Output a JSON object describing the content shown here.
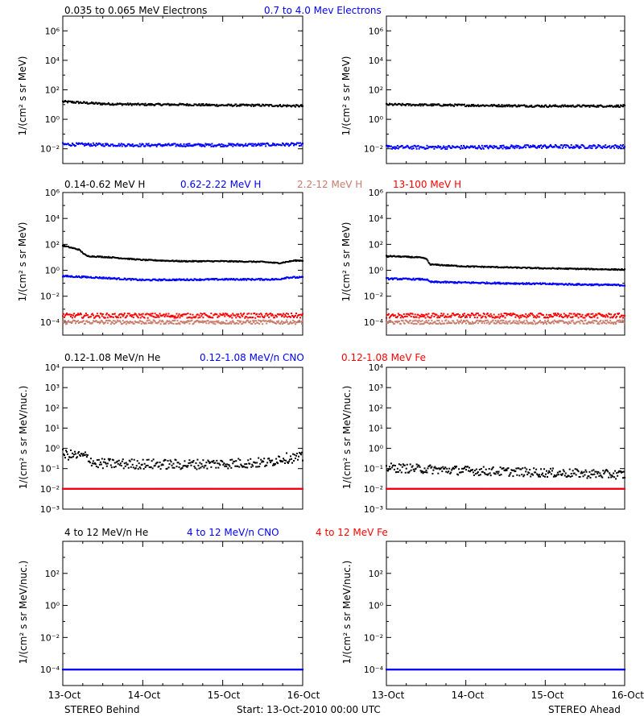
{
  "legends": {
    "electrons": [
      {
        "label": "0.035 to 0.065 MeV Electrons",
        "color": "#000000"
      },
      {
        "label": "0.7 to 4.0 Mev Electrons",
        "color": "#0000ff"
      }
    ],
    "protons": [
      {
        "label": "0.14-0.62 MeV H",
        "color": "#000000"
      },
      {
        "label": "0.62-2.22 MeV H",
        "color": "#0000ff"
      },
      {
        "label": "2.2-12 MeV H",
        "color": "#c87c6c"
      },
      {
        "label": "13-100 MeV H",
        "color": "#ff0000"
      }
    ],
    "heavy_low": [
      {
        "label": "0.12-1.08 MeV/n He",
        "color": "#000000"
      },
      {
        "label": "0.12-1.08 MeV/n CNO",
        "color": "#0000ff"
      },
      {
        "label": "0.12-1.08 MeV Fe",
        "color": "#ff0000"
      }
    ],
    "heavy_high": [
      {
        "label": "4 to 12 MeV/n He",
        "color": "#000000"
      },
      {
        "label": "4 to 12 MeV/n CNO",
        "color": "#0000ff"
      },
      {
        "label": "4 to 12 MeV Fe",
        "color": "#ff0000"
      }
    ]
  },
  "ylabels": {
    "per_mev": "1/(cm² s sr MeV)",
    "per_nuc": "1/(cm² s sr MeV/nuc.)"
  },
  "xticks": [
    "13-Oct",
    "14-Oct",
    "15-Oct",
    "16-Oct"
  ],
  "footer": {
    "left": "STEREO Behind",
    "center": "Start: 13-Oct-2010 00:00 UTC",
    "right": "STEREO Ahead"
  },
  "chart_data": [
    {
      "type": "scatter",
      "panel": "electrons-behind",
      "x": "days since start",
      "xlim": [
        0,
        3
      ],
      "log_y": true,
      "ylim_exp": [
        -3,
        7
      ],
      "yticks_exp": [
        -2,
        0,
        2,
        4,
        6
      ],
      "series": [
        {
          "name": "0.035 to 0.065 MeV Electrons",
          "color": "#000000",
          "x": [
            0,
            0.5,
            1,
            1.5,
            2,
            2.5,
            3
          ],
          "y_exp": [
            1.2,
            1.05,
            1.0,
            1.0,
            0.95,
            0.95,
            0.9
          ],
          "noise": 0.07
        },
        {
          "name": "0.7 to 4.0 Mev Electrons",
          "color": "#0000ff",
          "x": [
            0,
            1,
            2,
            3
          ],
          "y_exp": [
            -1.7,
            -1.75,
            -1.75,
            -1.7
          ],
          "noise": 0.1
        }
      ]
    },
    {
      "type": "scatter",
      "panel": "electrons-ahead",
      "x": "days since start",
      "xlim": [
        0,
        3
      ],
      "log_y": true,
      "ylim_exp": [
        -3,
        7
      ],
      "yticks_exp": [
        -2,
        0,
        2,
        4,
        6
      ],
      "series": [
        {
          "name": "0.035 to 0.065 MeV Electrons",
          "color": "#000000",
          "x": [
            0,
            1,
            2,
            3
          ],
          "y_exp": [
            1.0,
            0.95,
            0.9,
            0.9
          ],
          "noise": 0.07
        },
        {
          "name": "0.7 to 4.0 Mev Electrons",
          "color": "#0000ff",
          "x": [
            0,
            1,
            2,
            3
          ],
          "y_exp": [
            -1.9,
            -1.9,
            -1.85,
            -1.85
          ],
          "noise": 0.12
        }
      ]
    },
    {
      "type": "scatter",
      "panel": "protons-behind",
      "x": "days since start",
      "xlim": [
        0,
        3
      ],
      "log_y": true,
      "ylim_exp": [
        -5,
        6
      ],
      "yticks_exp": [
        -4,
        -2,
        0,
        2,
        4,
        6
      ],
      "series": [
        {
          "name": "0.14-0.62 MeV H",
          "color": "#000000",
          "x": [
            0,
            0.2,
            0.3,
            0.6,
            1.0,
            1.5,
            2.0,
            2.5,
            2.7,
            2.9,
            3.0
          ],
          "y_exp": [
            1.9,
            1.6,
            1.1,
            1.0,
            0.8,
            0.7,
            0.7,
            0.65,
            0.55,
            0.75,
            0.75
          ],
          "noise": 0.04
        },
        {
          "name": "0.62-2.22 MeV H",
          "color": "#0000ff",
          "x": [
            0,
            0.4,
            1.0,
            2.0,
            2.7,
            2.8,
            3.0
          ],
          "y_exp": [
            -0.45,
            -0.55,
            -0.75,
            -0.7,
            -0.7,
            -0.55,
            -0.55
          ],
          "noise": 0.06
        },
        {
          "name": "2.2-12 MeV H",
          "color": "#c87c6c",
          "x": [
            0,
            3
          ],
          "y_exp": [
            -4.0,
            -4.0
          ],
          "noise": 0.15
        },
        {
          "name": "13-100 MeV H",
          "color": "#ff0000",
          "x": [
            0,
            3
          ],
          "y_exp": [
            -3.5,
            -3.5
          ],
          "noise": 0.18
        }
      ]
    },
    {
      "type": "scatter",
      "panel": "protons-ahead",
      "x": "days since start",
      "xlim": [
        0,
        3
      ],
      "log_y": true,
      "ylim_exp": [
        -5,
        6
      ],
      "yticks_exp": [
        -4,
        -2,
        0,
        2,
        4,
        6
      ],
      "series": [
        {
          "name": "0.14-0.62 MeV H",
          "color": "#000000",
          "x": [
            0,
            0.4,
            0.5,
            0.55,
            1.0,
            2.0,
            3.0
          ],
          "y_exp": [
            1.1,
            1.0,
            0.9,
            0.45,
            0.3,
            0.15,
            0.05
          ],
          "noise": 0.04
        },
        {
          "name": "0.62-2.22 MeV H",
          "color": "#0000ff",
          "x": [
            0,
            0.5,
            0.55,
            1.0,
            2.0,
            3.0
          ],
          "y_exp": [
            -0.65,
            -0.7,
            -0.9,
            -0.95,
            -1.05,
            -1.15
          ],
          "noise": 0.06
        },
        {
          "name": "2.2-12 MeV H",
          "color": "#c87c6c",
          "x": [
            0,
            3
          ],
          "y_exp": [
            -4.0,
            -4.0
          ],
          "noise": 0.15
        },
        {
          "name": "13-100 MeV H",
          "color": "#ff0000",
          "x": [
            0,
            3
          ],
          "y_exp": [
            -3.5,
            -3.5
          ],
          "noise": 0.18
        }
      ]
    },
    {
      "type": "scatter",
      "panel": "heavy-low-behind",
      "x": "days since start",
      "xlim": [
        0,
        3
      ],
      "log_y": true,
      "ylim_exp": [
        -3,
        4
      ],
      "yticks_exp": [
        -3,
        -2,
        -1,
        0,
        1,
        2,
        3,
        4
      ],
      "series": [
        {
          "name": "0.12-1.08 MeV/n He",
          "color": "#000000",
          "x": [
            0,
            0.3,
            0.4,
            1.5,
            2.6,
            2.7,
            3.0
          ],
          "y_exp": [
            -0.3,
            -0.4,
            -0.75,
            -0.8,
            -0.7,
            -0.5,
            -0.45
          ],
          "noise": 0.25
        },
        {
          "name": "0.12-1.08 MeV/n CNO",
          "color": "#0000ff",
          "x": [
            0,
            3
          ],
          "y_exp": [
            -2.0,
            -2.0
          ],
          "noise": 0.0
        },
        {
          "name": "0.12-1.08 MeV Fe",
          "color": "#ff0000",
          "x": [
            0,
            3
          ],
          "y_exp": [
            -2.0,
            -2.0
          ],
          "noise": 0.0
        }
      ]
    },
    {
      "type": "scatter",
      "panel": "heavy-low-ahead",
      "x": "days since start",
      "xlim": [
        0,
        3
      ],
      "log_y": true,
      "ylim_exp": [
        -3,
        4
      ],
      "yticks_exp": [
        -3,
        -2,
        -1,
        0,
        1,
        2,
        3,
        4
      ],
      "series": [
        {
          "name": "0.12-1.08 MeV/n He",
          "color": "#000000",
          "x": [
            0,
            1,
            2,
            3
          ],
          "y_exp": [
            -0.95,
            -1.1,
            -1.2,
            -1.3
          ],
          "noise": 0.22
        },
        {
          "name": "0.12-1.08 MeV/n CNO",
          "color": "#0000ff",
          "x": [
            0,
            3
          ],
          "y_exp": [
            -2.0,
            -2.0
          ],
          "noise": 0.0
        },
        {
          "name": "0.12-1.08 MeV Fe",
          "color": "#ff0000",
          "x": [
            0,
            3
          ],
          "y_exp": [
            -2.0,
            -2.0
          ],
          "noise": 0.0
        }
      ]
    },
    {
      "type": "scatter",
      "panel": "heavy-high-behind",
      "x": "days since start",
      "xlim": [
        0,
        3
      ],
      "log_y": true,
      "ylim_exp": [
        -5,
        4
      ],
      "yticks_exp": [
        -4,
        -2,
        0,
        2
      ],
      "series": [
        {
          "name": "4 to 12 MeV/n He",
          "color": "#000000",
          "x": [
            0,
            3
          ],
          "y_exp": [
            -4.0,
            -4.0
          ],
          "noise": 0.0
        },
        {
          "name": "4 to 12 MeV/n CNO",
          "color": "#0000ff",
          "x": [
            0,
            3
          ],
          "y_exp": [
            -4.0,
            -4.0
          ],
          "noise": 0.0
        },
        {
          "name": "4 to 12 MeV Fe",
          "color": "#ff0000",
          "x": [],
          "y_exp": [],
          "noise": 0.0
        }
      ]
    },
    {
      "type": "scatter",
      "panel": "heavy-high-ahead",
      "x": "days since start",
      "xlim": [
        0,
        3
      ],
      "log_y": true,
      "ylim_exp": [
        -5,
        4
      ],
      "yticks_exp": [
        -4,
        -2,
        0,
        2
      ],
      "series": [
        {
          "name": "4 to 12 MeV/n He",
          "color": "#000000",
          "x": [
            0,
            3
          ],
          "y_exp": [
            -4.0,
            -4.0
          ],
          "noise": 0.0
        },
        {
          "name": "4 to 12 MeV/n CNO",
          "color": "#0000ff",
          "x": [
            0,
            3
          ],
          "y_exp": [
            -4.0,
            -4.0
          ],
          "noise": 0.0
        },
        {
          "name": "4 to 12 MeV Fe",
          "color": "#ff0000",
          "x": [],
          "y_exp": [],
          "noise": 0.0
        }
      ]
    }
  ]
}
